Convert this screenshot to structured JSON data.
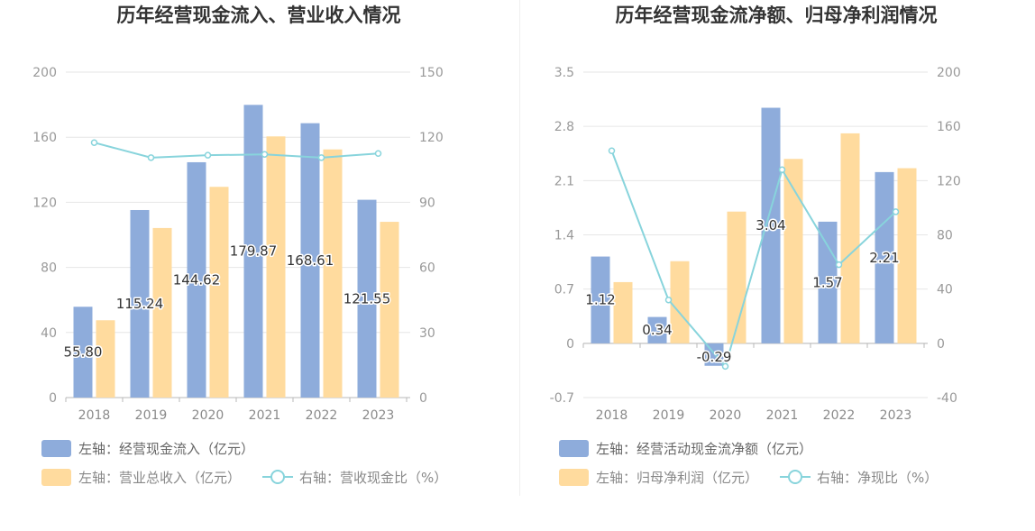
{
  "chart_data": [
    {
      "type": "bar",
      "title": "历年经营现金流入、营业收入情况",
      "categories": [
        "2018",
        "2019",
        "2020",
        "2021",
        "2022",
        "2023"
      ],
      "y_left": {
        "ylim": [
          0,
          200
        ],
        "ticks": [
          "0",
          "40",
          "80",
          "120",
          "160",
          "200"
        ]
      },
      "y_right": {
        "ylim": [
          0,
          150
        ],
        "ticks": [
          "0",
          "30",
          "60",
          "90",
          "120",
          "150"
        ]
      },
      "grid": true,
      "legend_position": "bottom-left",
      "series": [
        {
          "name": "左轴：经营现金流入（亿元）",
          "kind": "bar",
          "axis": "left",
          "color": "#8eacdb",
          "values": [
            55.8,
            115.24,
            144.62,
            179.87,
            168.61,
            121.55
          ],
          "labels": [
            "55.80",
            "115.24",
            "144.62",
            "179.87",
            "168.61",
            "121.55"
          ]
        },
        {
          "name": "左轴：营业总收入（亿元）",
          "kind": "bar",
          "axis": "left",
          "color": "#ffdb9e",
          "values": [
            47.5,
            104.2,
            129.5,
            160.5,
            152.5,
            108.0
          ]
        },
        {
          "name": "右轴：营收现金比（%）",
          "kind": "line",
          "axis": "right",
          "color": "#88d4dc",
          "values": [
            117.5,
            110.6,
            111.7,
            112.1,
            110.6,
            112.5
          ]
        }
      ]
    },
    {
      "type": "bar",
      "title": "历年经营现金流净额、归母净利润情况",
      "categories": [
        "2018",
        "2019",
        "2020",
        "2021",
        "2022",
        "2023"
      ],
      "y_left": {
        "ylim": [
          -0.7,
          3.5
        ],
        "ticks": [
          "-0.7",
          "0",
          "0.7",
          "1.4",
          "2.1",
          "2.8",
          "3.5"
        ]
      },
      "y_right": {
        "ylim": [
          -40,
          200
        ],
        "ticks": [
          "-40",
          "0",
          "40",
          "80",
          "120",
          "160",
          "200"
        ]
      },
      "grid": true,
      "legend_position": "bottom-left",
      "series": [
        {
          "name": "左轴：经营活动现金流净额（亿元）",
          "kind": "bar",
          "axis": "left",
          "color": "#8eacdb",
          "values": [
            1.12,
            0.34,
            -0.29,
            3.04,
            1.57,
            2.21
          ],
          "labels": [
            "1.12",
            "0.34",
            "-0.29",
            "3.04",
            "1.57",
            "2.21"
          ]
        },
        {
          "name": "左轴：归母净利润（亿元）",
          "kind": "bar",
          "axis": "left",
          "color": "#ffdb9e",
          "values": [
            0.79,
            1.06,
            1.7,
            2.38,
            2.71,
            2.26
          ]
        },
        {
          "name": "右轴：净现比（%）",
          "kind": "line",
          "axis": "right",
          "color": "#88d4dc",
          "values": [
            142,
            32,
            -17,
            128,
            58,
            97
          ]
        }
      ]
    }
  ]
}
